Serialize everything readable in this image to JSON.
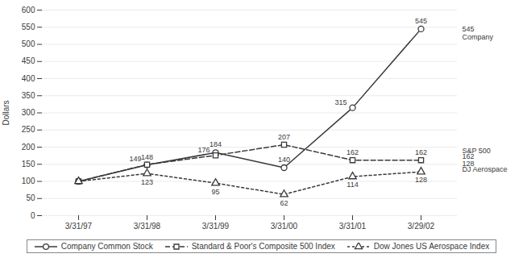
{
  "chart_data": {
    "type": "line",
    "categories": [
      "3/31/97",
      "3/31/98",
      "3/31/99",
      "3/31/00",
      "3/31/01",
      "3/29/02"
    ],
    "series": [
      {
        "name": "Company Common Stock",
        "values": [
          100,
          148,
          184,
          140,
          315,
          545
        ],
        "value_labels": [
          null,
          "148",
          "184",
          "140",
          "315",
          "545"
        ],
        "line_style": "solid",
        "marker": "circle"
      },
      {
        "name": "Standard & Poor's Composite 500 Index",
        "values": [
          100,
          149,
          176,
          207,
          162,
          162
        ],
        "value_labels": [
          null,
          "149",
          "176",
          "207",
          "162",
          "162"
        ],
        "line_style": "dashed",
        "marker": "square"
      },
      {
        "name": "Dow Jones US Aerospace Index",
        "values": [
          100,
          123,
          95,
          62,
          114,
          128
        ],
        "value_labels": [
          null,
          "123",
          "95",
          "62",
          "114",
          "128"
        ],
        "line_style": "dotted",
        "marker": "triangle"
      }
    ],
    "color": "#3a3a3a",
    "ylabel": "Dollars",
    "ylim": [
      0,
      600
    ],
    "yticks": [
      0,
      50,
      100,
      150,
      200,
      250,
      300,
      350,
      400,
      450,
      500,
      550,
      600
    ],
    "grid": true,
    "legend": "bottom",
    "data_labels": true,
    "annotations": [
      {
        "text": "545",
        "y": 545
      },
      {
        "text": "Company",
        "y": 520
      },
      {
        "text": "S&P 500",
        "y": 190
      },
      {
        "text": "162",
        "y": 172
      },
      {
        "text": "128",
        "y": 152
      },
      {
        "text": "DJ Aerospace",
        "y": 134
      }
    ]
  }
}
